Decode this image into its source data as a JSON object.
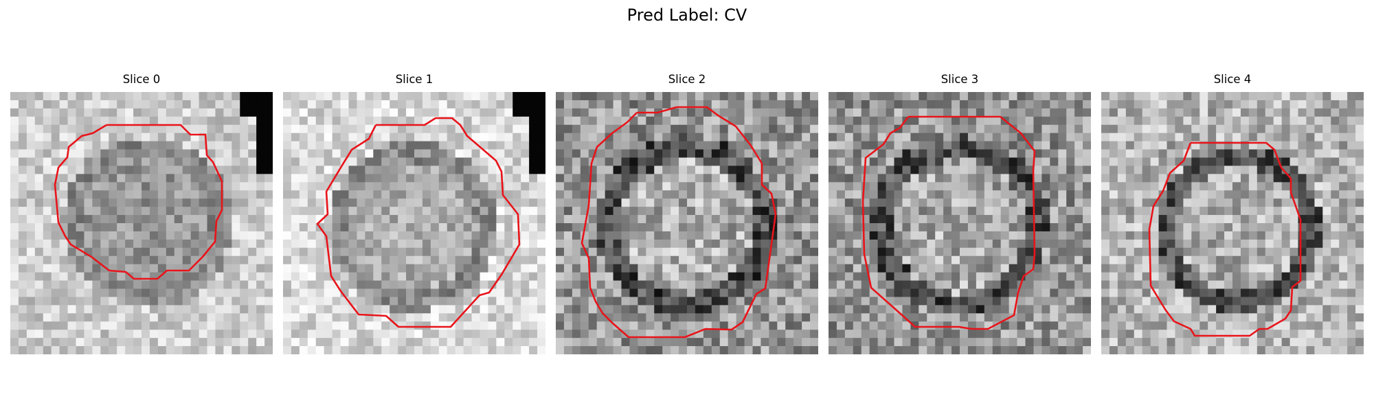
{
  "figure": {
    "title": "Pred Label: CV"
  },
  "panels": [
    {
      "title": "Slice 0",
      "style": "slice0"
    },
    {
      "title": "Slice 1",
      "style": "slice1"
    },
    {
      "title": "Slice 2",
      "style": "slice2"
    },
    {
      "title": "Slice 3",
      "style": "slice3"
    },
    {
      "title": "Slice 4",
      "style": "slice4"
    }
  ],
  "colors": {
    "contour": "#e8141a"
  }
}
